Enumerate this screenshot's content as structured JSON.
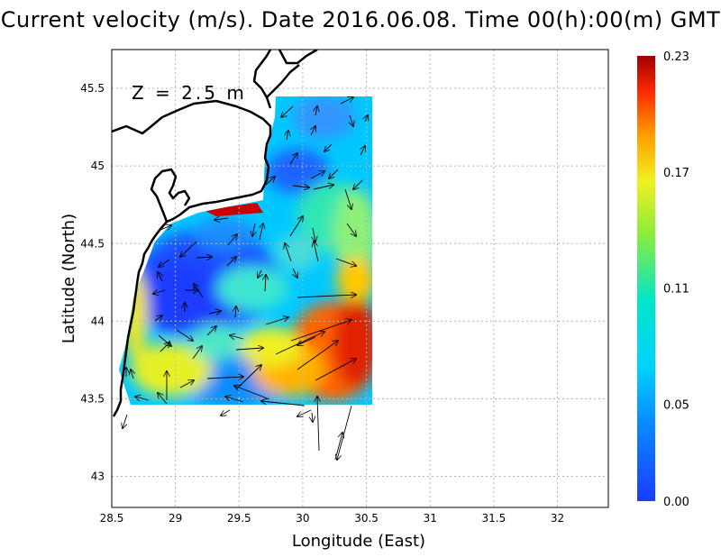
{
  "title": "Current velocity (m/s). Date 2016.06.08. Time 00(h):00(m) GMT",
  "annotation": "Z = 2.5 m",
  "x_axis": {
    "label": "Longitude (East)",
    "ticks": [
      "28.5",
      "29",
      "29.5",
      "30",
      "30.5",
      "31",
      "31.5",
      "32"
    ],
    "range": [
      28.5,
      32.4
    ]
  },
  "y_axis": {
    "label": "Latitude (North)",
    "ticks": [
      "43",
      "43.5",
      "44",
      "44.5",
      "45",
      "45.5"
    ],
    "range": [
      42.8,
      45.75
    ]
  },
  "colorbar": {
    "labels": [
      "0.00",
      "0.05",
      "0.11",
      "0.17",
      "0.23"
    ],
    "values": [
      0.0,
      0.05,
      0.11,
      0.17,
      0.23
    ],
    "colors": [
      "#1a3cff",
      "#00b4ff",
      "#00e6e6",
      "#2ee08a",
      "#e6f02a",
      "#ffb000",
      "#ff4000",
      "#a00000"
    ]
  },
  "colors": {
    "land_outline": "#000000",
    "grid": "#b4b4b4",
    "background": "#ffffff"
  }
}
